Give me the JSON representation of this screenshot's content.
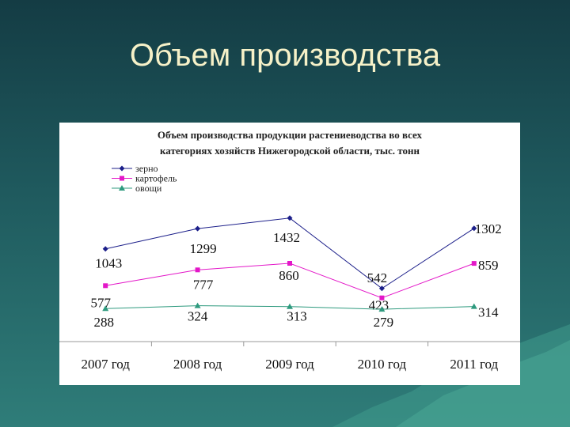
{
  "slide": {
    "title": "Объем производства"
  },
  "colors": {
    "background": "#1f5a5e",
    "title": "#f6f1c8",
    "zerno": "#1c1f8a",
    "kartofel": "#e317c8",
    "ovoshchi": "#2e9a7e"
  },
  "chart_data": {
    "type": "line",
    "title_lines": [
      "Объем производства продукции растениеводства во всех",
      "категориях хозяйств Нижегородской области, тыс. тонн"
    ],
    "categories": [
      "2007 год",
      "2008 год",
      "2009 год",
      "2010 год",
      "2011 год"
    ],
    "series": [
      {
        "name": "зерно",
        "marker": "diamond",
        "values": [
          1043,
          1299,
          1432,
          542,
          1302
        ]
      },
      {
        "name": "картофель",
        "marker": "square",
        "values": [
          577,
          777,
          860,
          423,
          859
        ]
      },
      {
        "name": "овощи",
        "marker": "triangle",
        "values": [
          288,
          324,
          313,
          279,
          314
        ]
      }
    ],
    "legend": "top-left",
    "grid": false
  }
}
